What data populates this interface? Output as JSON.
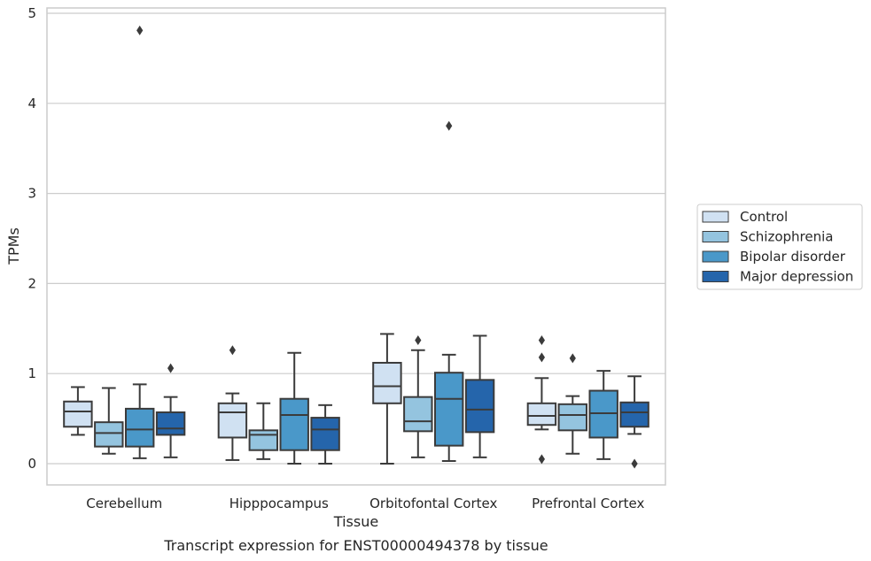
{
  "chart_data": {
    "type": "box",
    "caption": "Transcript expression for ENST00000494378 by tissue",
    "xlabel": "Tissue",
    "ylabel": "TPMs",
    "ylim": [
      -0.23,
      5.07
    ],
    "yticks": [
      "0",
      "1",
      "2",
      "3",
      "4",
      "5"
    ],
    "grid": true,
    "legend_position": "right",
    "categories": [
      "Cerebellum",
      "Hipppocampus",
      "Orbitofontal Cortex",
      "Prefrontal Cortex"
    ],
    "series": [
      {
        "name": "Control",
        "color": "#d0e1f2",
        "boxes": [
          {
            "whislo": 0.32,
            "q1": 0.41,
            "med": 0.58,
            "q3": 0.69,
            "whishi": 0.85,
            "fliers": []
          },
          {
            "whislo": 0.04,
            "q1": 0.29,
            "med": 0.57,
            "q3": 0.67,
            "whishi": 0.78,
            "fliers": [
              1.26
            ]
          },
          {
            "whislo": 0.0,
            "q1": 0.67,
            "med": 0.86,
            "q3": 1.12,
            "whishi": 1.44,
            "fliers": []
          },
          {
            "whislo": 0.38,
            "q1": 0.43,
            "med": 0.53,
            "q3": 0.67,
            "whishi": 0.95,
            "fliers": [
              1.37,
              1.18,
              0.05
            ]
          }
        ]
      },
      {
        "name": "Schizophrenia",
        "color": "#94c4df",
        "boxes": [
          {
            "whislo": 0.11,
            "q1": 0.19,
            "med": 0.34,
            "q3": 0.46,
            "whishi": 0.84,
            "fliers": []
          },
          {
            "whislo": 0.05,
            "q1": 0.15,
            "med": 0.32,
            "q3": 0.37,
            "whishi": 0.67,
            "fliers": []
          },
          {
            "whislo": 0.07,
            "q1": 0.36,
            "med": 0.47,
            "q3": 0.74,
            "whishi": 1.26,
            "fliers": [
              1.37
            ]
          },
          {
            "whislo": 0.11,
            "q1": 0.37,
            "med": 0.54,
            "q3": 0.66,
            "whishi": 0.75,
            "fliers": [
              1.17
            ]
          }
        ]
      },
      {
        "name": "Bipolar disorder",
        "color": "#4a98c9",
        "boxes": [
          {
            "whislo": 0.06,
            "q1": 0.19,
            "med": 0.38,
            "q3": 0.61,
            "whishi": 0.88,
            "fliers": [
              4.81
            ]
          },
          {
            "whislo": 0.0,
            "q1": 0.15,
            "med": 0.54,
            "q3": 0.72,
            "whishi": 1.23,
            "fliers": []
          },
          {
            "whislo": 0.03,
            "q1": 0.2,
            "med": 0.72,
            "q3": 1.01,
            "whishi": 1.21,
            "fliers": [
              3.75
            ]
          },
          {
            "whislo": 0.05,
            "q1": 0.29,
            "med": 0.56,
            "q3": 0.81,
            "whishi": 1.03,
            "fliers": []
          }
        ]
      },
      {
        "name": "Major depression",
        "color": "#2565ab",
        "boxes": [
          {
            "whislo": 0.07,
            "q1": 0.32,
            "med": 0.39,
            "q3": 0.57,
            "whishi": 0.74,
            "fliers": [
              1.06
            ]
          },
          {
            "whislo": 0.0,
            "q1": 0.15,
            "med": 0.38,
            "q3": 0.51,
            "whishi": 0.65,
            "fliers": []
          },
          {
            "whislo": 0.07,
            "q1": 0.35,
            "med": 0.6,
            "q3": 0.93,
            "whishi": 1.42,
            "fliers": []
          },
          {
            "whislo": 0.33,
            "q1": 0.41,
            "med": 0.57,
            "q3": 0.68,
            "whishi": 0.97,
            "fliers": [
              0.0
            ]
          }
        ]
      }
    ]
  }
}
